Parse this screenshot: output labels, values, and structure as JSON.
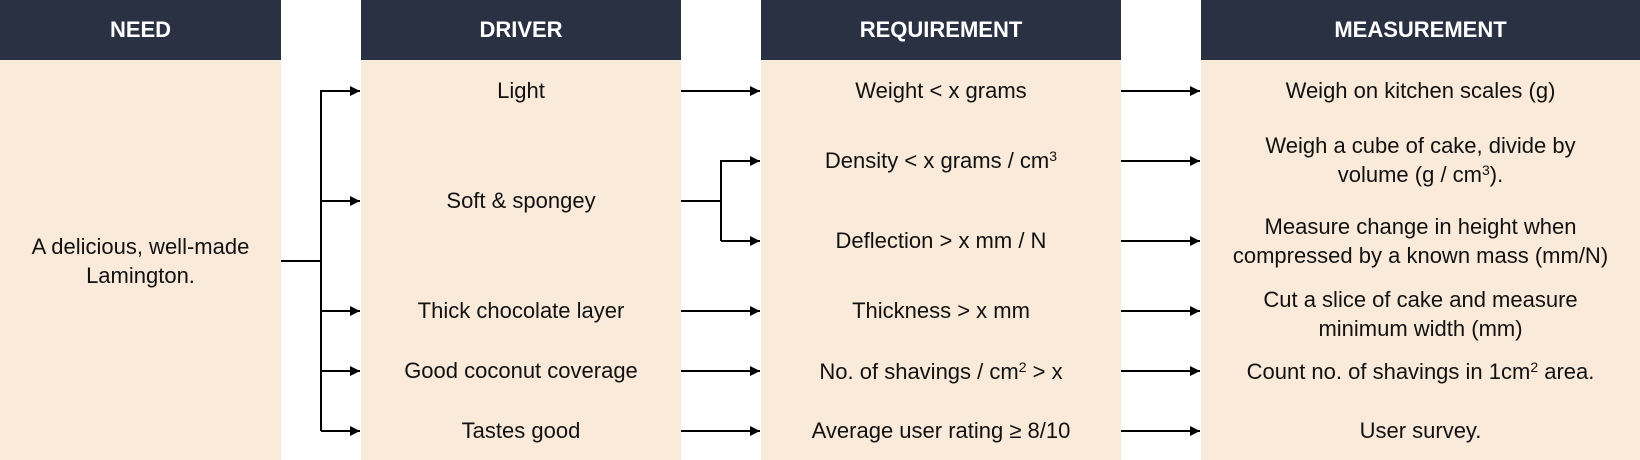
{
  "headers": {
    "need": "NEED",
    "driver": "DRIVER",
    "requirement": "REQUIREMENT",
    "measurement": "MEASUREMENT"
  },
  "need": "A delicious, well-made Lamington.",
  "drivers": [
    "Light",
    "Soft & spongey",
    "Thick chocolate layer",
    "Good coconut coverage",
    "Tastes good"
  ],
  "requirements": [
    {
      "text": "Weight < x grams"
    },
    {
      "text": "Density < x grams / cm",
      "sup": "3"
    },
    {
      "text": "Deflection > x mm / N"
    },
    {
      "text": "Thickness > x mm"
    },
    {
      "text": "No. of shavings / cm",
      "sup": "2",
      "after": " > x"
    },
    {
      "text": "Average user rating ≥ 8/10"
    }
  ],
  "measurements": [
    {
      "text": "Weigh on kitchen scales (g)"
    },
    {
      "text": "Weigh a cube of cake, divide by volume (g / cm",
      "sup": "3",
      "after": ")."
    },
    {
      "text": "Measure change in height when compressed by a known mass (mm/N)"
    },
    {
      "text": "Cut a slice of cake and measure minimum width (mm)"
    },
    {
      "text": "Count no. of shavings in 1cm",
      "sup": "2",
      "after": " area."
    },
    {
      "text": "User survey."
    }
  ],
  "colors": {
    "header_bg": "#2a3142",
    "header_text": "#ffffff",
    "column_bg": "#f9eada",
    "arrow": "#000000"
  }
}
